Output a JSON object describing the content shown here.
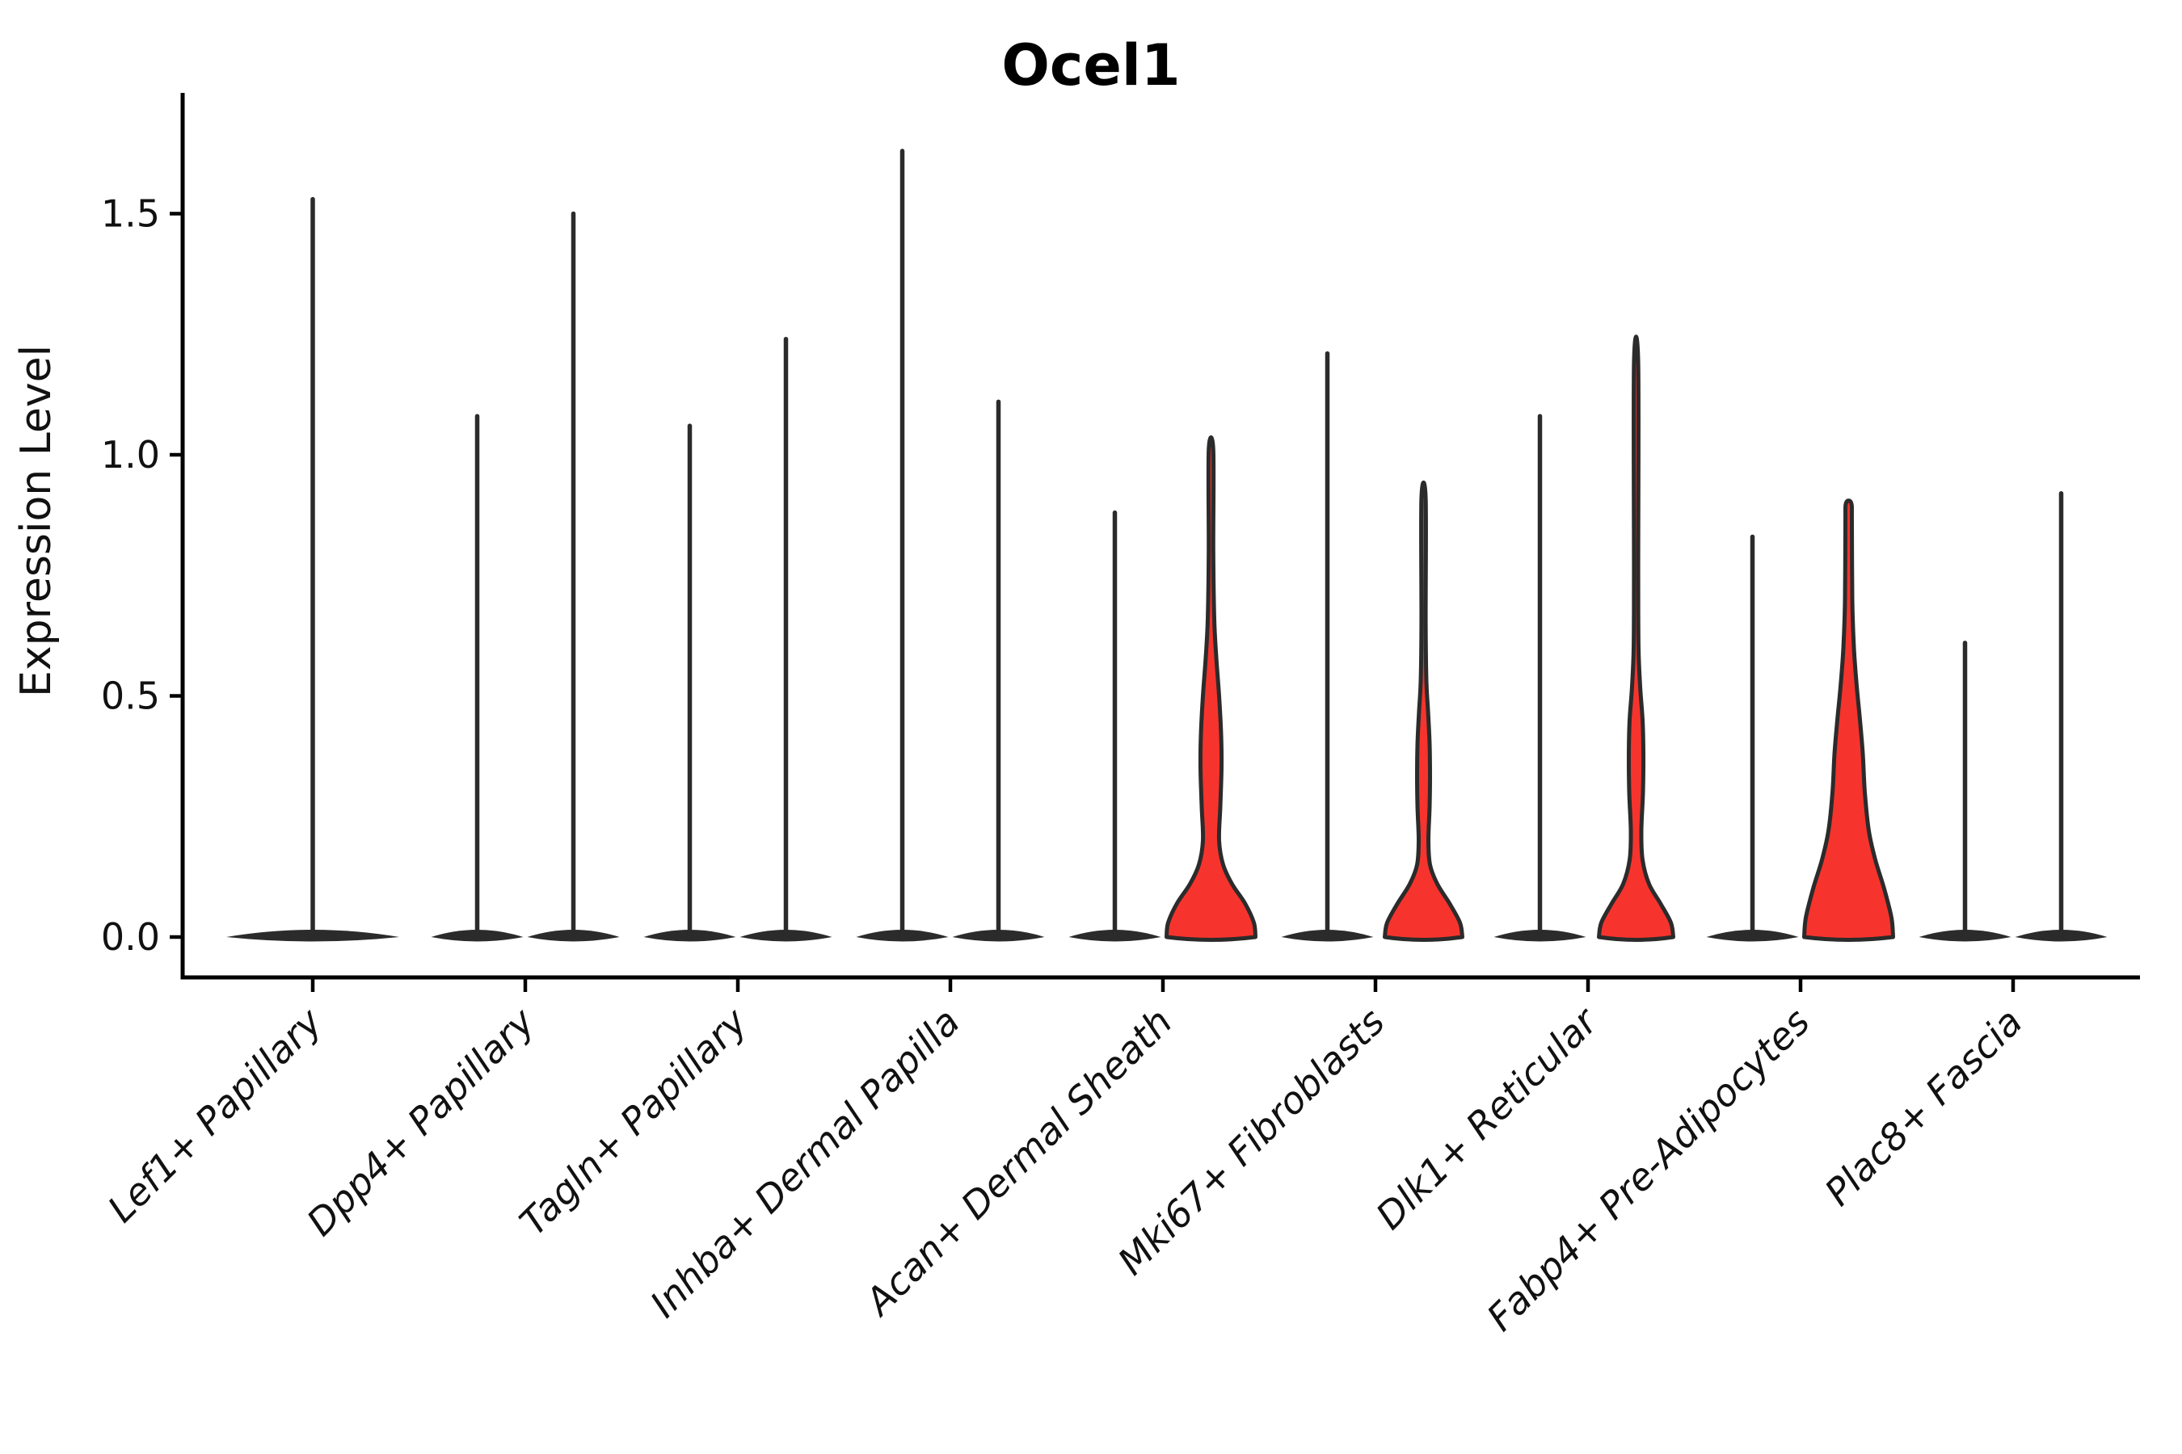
{
  "chart_data": {
    "type": "violin",
    "title": "Ocel1",
    "xlabel": "",
    "ylabel": "Expression Level",
    "yticks": [
      "0.0",
      "0.5",
      "1.0",
      "1.5"
    ],
    "ytick_values": [
      0.0,
      0.5,
      1.0,
      1.5
    ],
    "ylim": [
      -0.07,
      1.75
    ],
    "grid": false,
    "legend": "none",
    "colors": {
      "fill_red": "#f6342d",
      "outline": "#2b2b2b",
      "axis": "#000000"
    },
    "categories": [
      "Lef1+ Papillary",
      "Dpp4+ Papillary",
      "Tagln+ Papillary",
      "Inhba+ Dermal Papilla",
      "Acan+ Dermal Sheath",
      "Mki67+ Fibroblasts",
      "Dlk1+ Reticular",
      "Fabp4+ Pre-Adipocytes",
      "Plac8+ Fascia"
    ],
    "series_note": "each category holds one or two violins; 'max' is the top of the expression spike (Expression Level units); 'filled' violins show a visible red body; thin violins are near-zero-width with a flat base at 0",
    "violins": [
      {
        "category": "Lef1+ Papillary",
        "items": [
          {
            "side": "single",
            "max": 1.53,
            "filled": false,
            "base_halfwidth": 107
          }
        ]
      },
      {
        "category": "Dpp4+ Papillary",
        "items": [
          {
            "side": "left",
            "max": 1.08,
            "filled": false
          },
          {
            "side": "right",
            "max": 1.5,
            "filled": false
          }
        ]
      },
      {
        "category": "Tagln+ Papillary",
        "items": [
          {
            "side": "left",
            "max": 1.06,
            "filled": false
          },
          {
            "side": "right",
            "max": 1.24,
            "filled": false
          }
        ]
      },
      {
        "category": "Inhba+ Dermal Papilla",
        "items": [
          {
            "side": "left",
            "max": 1.63,
            "filled": false
          },
          {
            "side": "right",
            "max": 1.11,
            "filled": false
          }
        ]
      },
      {
        "category": "Acan+ Dermal Sheath",
        "items": [
          {
            "side": "left",
            "max": 0.88,
            "filled": false
          },
          {
            "side": "right",
            "max": 1.01,
            "filled": true,
            "profile": "acan"
          }
        ]
      },
      {
        "category": "Mki67+ Fibroblasts",
        "items": [
          {
            "side": "left",
            "max": 1.21,
            "filled": false
          },
          {
            "side": "right",
            "max": 0.91,
            "filled": true,
            "profile": "mki67"
          }
        ]
      },
      {
        "category": "Dlk1+ Reticular",
        "items": [
          {
            "side": "left",
            "max": 1.08,
            "filled": false
          },
          {
            "side": "right",
            "max": 1.19,
            "filled": true,
            "profile": "dlk1"
          }
        ]
      },
      {
        "category": "Fabp4+ Pre-Adipocytes",
        "items": [
          {
            "side": "left",
            "max": 0.83,
            "filled": false
          },
          {
            "side": "right",
            "max": 0.9,
            "filled": true,
            "profile": "fabp4"
          }
        ]
      },
      {
        "category": "Plac8+ Fascia",
        "items": [
          {
            "side": "left",
            "max": 0.61,
            "filled": false
          },
          {
            "side": "right",
            "max": 0.92,
            "filled": false
          }
        ]
      }
    ],
    "profiles": {
      "acan": [
        [
          0.0,
          55
        ],
        [
          0.03,
          53
        ],
        [
          0.07,
          42
        ],
        [
          0.11,
          26
        ],
        [
          0.15,
          15
        ],
        [
          0.2,
          10
        ],
        [
          0.27,
          11.5
        ],
        [
          0.35,
          13
        ],
        [
          0.42,
          12.5
        ],
        [
          0.5,
          10
        ],
        [
          0.58,
          6.5
        ],
        [
          0.66,
          4
        ],
        [
          0.8,
          2.8
        ],
        [
          1.01,
          2.8
        ]
      ],
      "mki67": [
        [
          0.0,
          48
        ],
        [
          0.03,
          45
        ],
        [
          0.07,
          32
        ],
        [
          0.11,
          17
        ],
        [
          0.15,
          8
        ],
        [
          0.2,
          6
        ],
        [
          0.27,
          7.5
        ],
        [
          0.33,
          8
        ],
        [
          0.4,
          7.5
        ],
        [
          0.47,
          5.5
        ],
        [
          0.53,
          3.5
        ],
        [
          0.65,
          2.6
        ],
        [
          0.91,
          2.6
        ]
      ],
      "dlk1": [
        [
          0.0,
          46
        ],
        [
          0.03,
          43
        ],
        [
          0.07,
          30
        ],
        [
          0.11,
          16
        ],
        [
          0.16,
          8
        ],
        [
          0.22,
          6.5
        ],
        [
          0.3,
          8.5
        ],
        [
          0.38,
          9
        ],
        [
          0.45,
          8
        ],
        [
          0.52,
          5
        ],
        [
          0.6,
          3
        ],
        [
          0.75,
          2.6
        ],
        [
          1.19,
          2.6
        ]
      ],
      "fabp4": [
        [
          0.0,
          55
        ],
        [
          0.04,
          53
        ],
        [
          0.1,
          44
        ],
        [
          0.16,
          33
        ],
        [
          0.22,
          25
        ],
        [
          0.3,
          20
        ],
        [
          0.38,
          17.5
        ],
        [
          0.45,
          14
        ],
        [
          0.52,
          10
        ],
        [
          0.6,
          6.5
        ],
        [
          0.7,
          4.5
        ],
        [
          0.86,
          4
        ],
        [
          0.9,
          3.2
        ]
      ]
    }
  }
}
